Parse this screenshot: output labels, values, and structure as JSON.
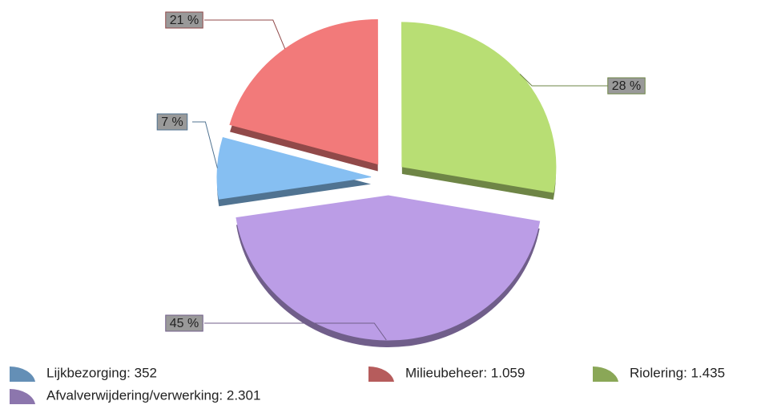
{
  "chart_data": {
    "type": "pie",
    "labels": [
      "Lijkbezorging: 352",
      "Milieubeheer: 1.059",
      "Riolering: 1.435",
      "Afvalverwijdering/verwerking: 2.301"
    ],
    "values": [
      352,
      1059,
      1435,
      2301
    ],
    "value_labels": [
      "7 %",
      "21 %",
      "28 %",
      "45 %"
    ],
    "colors": [
      "#86bff2",
      "#f27a7a",
      "#b8de74",
      "#bb9de6"
    ]
  }
}
